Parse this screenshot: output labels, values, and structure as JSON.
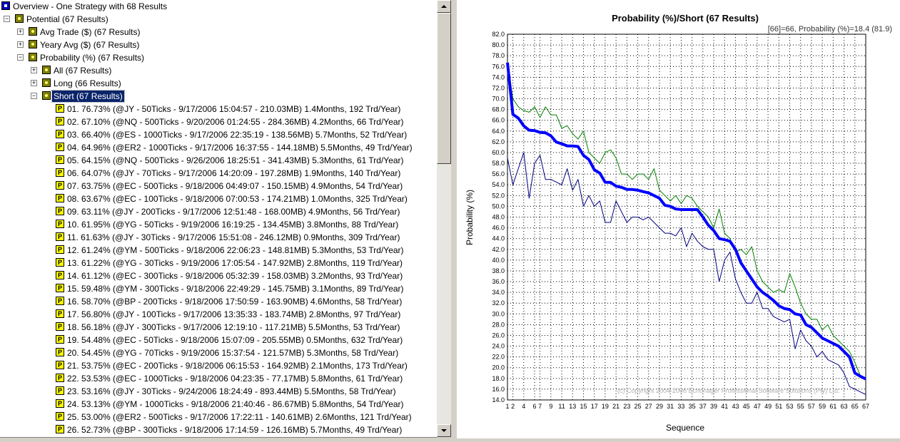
{
  "tree": {
    "items": [
      {
        "label": "Overview - One Strategy with 68 Results",
        "level": 0,
        "icon": "root"
      },
      {
        "label": "Potential (67 Results)",
        "level": 1,
        "icon": "node",
        "expanded": true
      },
      {
        "label": "Avg Trade ($) (67 Results)",
        "level": 2,
        "icon": "node",
        "expanded": false
      },
      {
        "label": "Yeary Avg ($) (67 Results)",
        "level": 2,
        "icon": "node",
        "expanded": false
      },
      {
        "label": "Probability (%) (67 Results)",
        "level": 2,
        "icon": "node",
        "expanded": true
      },
      {
        "label": "All (67 Results)",
        "level": 3,
        "icon": "node",
        "expanded": false
      },
      {
        "label": "Long (66 Results)",
        "level": 3,
        "icon": "node",
        "expanded": false
      },
      {
        "label": "Short (67 Results)",
        "level": 3,
        "icon": "node",
        "expanded": true,
        "selected": true
      },
      {
        "label": "01. 76.73% (@JY - 50Ticks - 9/17/2006 15:04:57 - 210.03MB) 1.4Months, 192 Trd/Year)",
        "level": 4,
        "icon": "res",
        "icon_text": "P"
      },
      {
        "label": "02. 67.10% (@NQ - 500Ticks - 9/20/2006 01:24:55 - 284.36MB) 4.2Months, 66 Trd/Year)",
        "level": 4,
        "icon": "res",
        "icon_text": "P"
      },
      {
        "label": "03. 66.40% (@ES - 1000Ticks - 9/17/2006 22:35:19 - 138.56MB) 5.7Months, 52 Trd/Year)",
        "level": 4,
        "icon": "res",
        "icon_text": "P"
      },
      {
        "label": "04. 64.96% (@ER2 - 1000Ticks - 9/17/2006 16:37:55 - 144.18MB) 5.5Months, 49 Trd/Year)",
        "level": 4,
        "icon": "res",
        "icon_text": "P"
      },
      {
        "label": "05. 64.15% (@NQ - 500Ticks - 9/26/2006 18:25:51 - 341.43MB) 5.3Months, 61 Trd/Year)",
        "level": 4,
        "icon": "res",
        "icon_text": "P"
      },
      {
        "label": "06. 64.07% (@JY - 70Ticks - 9/17/2006 14:20:09 - 197.28MB) 1.9Months, 140 Trd/Year)",
        "level": 4,
        "icon": "res",
        "icon_text": "P"
      },
      {
        "label": "07. 63.75% (@EC - 500Ticks - 9/18/2006 04:49:07 - 150.15MB) 4.9Months, 54 Trd/Year)",
        "level": 4,
        "icon": "res",
        "icon_text": "P"
      },
      {
        "label": "08. 63.67% (@EC - 100Ticks - 9/18/2006 07:00:53 - 174.21MB) 1.0Months, 325 Trd/Year)",
        "level": 4,
        "icon": "res",
        "icon_text": "P"
      },
      {
        "label": "09. 63.11% (@JY - 200Ticks - 9/17/2006 12:51:48 - 168.00MB) 4.9Months, 56 Trd/Year)",
        "level": 4,
        "icon": "res",
        "icon_text": "P"
      },
      {
        "label": "10. 61.95% (@YG - 50Ticks - 9/19/2006 16:19:25 - 134.45MB) 3.8Months, 88 Trd/Year)",
        "level": 4,
        "icon": "res",
        "icon_text": "P"
      },
      {
        "label": "11. 61.63% (@JY - 30Ticks - 9/17/2006 15:51:08 - 246.12MB) 0.9Months, 309 Trd/Year)",
        "level": 4,
        "icon": "res",
        "icon_text": "P"
      },
      {
        "label": "12. 61.24% (@YM - 500Ticks - 9/18/2006 22:06:23 - 148.81MB) 5.3Months, 53 Trd/Year)",
        "level": 4,
        "icon": "res",
        "icon_text": "P"
      },
      {
        "label": "13. 61.22% (@YG - 30Ticks - 9/19/2006 17:05:54 - 147.92MB) 2.8Months, 119 Trd/Year)",
        "level": 4,
        "icon": "res",
        "icon_text": "P"
      },
      {
        "label": "14. 61.12% (@EC - 300Ticks - 9/18/2006 05:32:39 - 158.03MB) 3.2Months, 93 Trd/Year)",
        "level": 4,
        "icon": "res",
        "icon_text": "P"
      },
      {
        "label": "15. 59.48% (@YM - 300Ticks - 9/18/2006 22:49:29 - 145.75MB) 3.1Months, 89 Trd/Year)",
        "level": 4,
        "icon": "res",
        "icon_text": "P"
      },
      {
        "label": "16. 58.70% (@BP - 200Ticks - 9/18/2006 17:50:59 - 163.90MB) 4.6Months, 58 Trd/Year)",
        "level": 4,
        "icon": "res",
        "icon_text": "P"
      },
      {
        "label": "17. 56.80% (@JY - 100Ticks - 9/17/2006 13:35:33 - 183.74MB) 2.8Months, 97 Trd/Year)",
        "level": 4,
        "icon": "res",
        "icon_text": "P"
      },
      {
        "label": "18. 56.18% (@JY - 300Ticks - 9/17/2006 12:19:10 - 117.21MB) 5.5Months, 53 Trd/Year)",
        "level": 4,
        "icon": "res",
        "icon_text": "P"
      },
      {
        "label": "19. 54.48% (@EC - 50Ticks - 9/18/2006 15:07:09 - 205.55MB) 0.5Months, 632 Trd/Year)",
        "level": 4,
        "icon": "res",
        "icon_text": "P"
      },
      {
        "label": "20. 54.45% (@YG - 70Ticks - 9/19/2006 15:37:54 - 121.57MB) 5.3Months, 58 Trd/Year)",
        "level": 4,
        "icon": "res",
        "icon_text": "P"
      },
      {
        "label": "21. 53.75% (@EC - 200Ticks - 9/18/2006 06:15:53 - 164.92MB) 2.1Months, 173 Trd/Year)",
        "level": 4,
        "icon": "res",
        "icon_text": "P"
      },
      {
        "label": "22. 53.53% (@EC - 1000Ticks - 9/18/2006 04:23:35 - 77.17MB) 5.8Months, 61 Trd/Year)",
        "level": 4,
        "icon": "res",
        "icon_text": "P"
      },
      {
        "label": "23. 53.16% (@JY - 30Ticks - 9/24/2006 18:24:49 - 893.44MB) 5.5Months, 58 Trd/Year)",
        "level": 4,
        "icon": "res",
        "icon_text": "P"
      },
      {
        "label": "24. 53.13% (@YM - 1000Ticks - 9/18/2006 21:40:46 - 86.67MB) 5.8Months, 54 Trd/Year)",
        "level": 4,
        "icon": "res",
        "icon_text": "P"
      },
      {
        "label": "25. 53.00% (@ER2 - 500Ticks - 9/17/2006 17:22:11 - 140.61MB) 2.6Months, 121 Trd/Year)",
        "level": 4,
        "icon": "res",
        "icon_text": "P"
      },
      {
        "label": "26. 52.73% (@BP - 300Ticks - 9/18/2006 17:14:59 - 126.16MB) 5.7Months, 49 Trd/Year)",
        "level": 4,
        "icon": "res",
        "icon_text": "P"
      }
    ]
  },
  "chart_data": {
    "type": "line",
    "title": "Probability (%)/Short (67 Results)",
    "annotation": "[66]=66,  Probability (%)=18.4 (81.9)",
    "copyright": "(c) Copyright 2004-2006 Echonager Professional Software Solutions (Pty) Ltd.",
    "xlabel": "Sequence",
    "ylabel": "Probability (%)",
    "x": [
      1,
      2,
      3,
      4,
      5,
      6,
      7,
      8,
      9,
      10,
      11,
      12,
      13,
      14,
      15,
      16,
      17,
      18,
      19,
      20,
      21,
      22,
      23,
      24,
      25,
      26,
      27,
      28,
      29,
      30,
      31,
      32,
      33,
      34,
      35,
      36,
      37,
      38,
      39,
      40,
      41,
      42,
      43,
      44,
      45,
      46,
      47,
      48,
      49,
      50,
      51,
      52,
      53,
      54,
      55,
      56,
      57,
      58,
      59,
      60,
      61,
      62,
      63,
      64,
      65,
      66,
      67
    ],
    "xlim": [
      1,
      67
    ],
    "xticks": [
      1,
      2,
      4,
      6,
      7,
      9,
      11,
      13,
      15,
      17,
      19,
      21,
      23,
      25,
      27,
      29,
      31,
      33,
      35,
      37,
      39,
      41,
      43,
      45,
      47,
      49,
      51,
      53,
      55,
      57,
      59,
      61,
      63,
      65,
      67
    ],
    "ylim": [
      14,
      82
    ],
    "yticks": [
      {
        "value": 14,
        "label": "14.0"
      },
      {
        "value": 16,
        "label": "16.0"
      },
      {
        "value": 18,
        "label": "18.0"
      },
      {
        "value": 20,
        "label": "20.0"
      },
      {
        "value": 22,
        "label": "22.0"
      },
      {
        "value": 24,
        "label": "24.0"
      },
      {
        "value": 26,
        "label": "26.0"
      },
      {
        "value": 28,
        "label": "28.0"
      },
      {
        "value": 30,
        "label": "30.0"
      },
      {
        "value": 32,
        "label": "32.0"
      },
      {
        "value": 34,
        "label": "34.0"
      },
      {
        "value": 36,
        "label": "36.0"
      },
      {
        "value": 38,
        "label": "38.0"
      },
      {
        "value": 40,
        "label": "40.0"
      },
      {
        "value": 42,
        "label": "42.0"
      },
      {
        "value": 44,
        "label": "44.0"
      },
      {
        "value": 46,
        "label": "46.0"
      },
      {
        "value": 48,
        "label": "48.0"
      },
      {
        "value": 50,
        "label": "50.0"
      },
      {
        "value": 52,
        "label": "52.0"
      },
      {
        "value": 54,
        "label": "54.0"
      },
      {
        "value": 56,
        "label": "56.0"
      },
      {
        "value": 58,
        "label": "58.0"
      },
      {
        "value": 60,
        "label": "60.0"
      },
      {
        "value": 62,
        "label": "62.0"
      },
      {
        "value": 64,
        "label": "64.0"
      },
      {
        "value": 66,
        "label": "66.0"
      },
      {
        "value": 68,
        "label": "68.0"
      },
      {
        "value": 70,
        "label": "70.0"
      },
      {
        "value": 72,
        "label": "72.0"
      },
      {
        "value": 74,
        "label": "74.0"
      },
      {
        "value": 76,
        "label": "76.0"
      },
      {
        "value": 78,
        "label": "78.0"
      },
      {
        "value": 80,
        "label": "80.0"
      },
      {
        "value": 82,
        "label": "82.0"
      }
    ],
    "grid": true,
    "series": [
      {
        "color": "#008000",
        "width": 1,
        "values": [
          77,
          70,
          68.5,
          67.8,
          67.5,
          68.5,
          66.5,
          68.5,
          67,
          67,
          64.5,
          65,
          63.5,
          62.5,
          64,
          60,
          59,
          58,
          60,
          60.5,
          59,
          56,
          56,
          55,
          56,
          56,
          55,
          57,
          53,
          52,
          51,
          52,
          50.5,
          52,
          51.5,
          50,
          49,
          48,
          46,
          49.5,
          45,
          44,
          41.5,
          42,
          41,
          42.5,
          38,
          36,
          35,
          34,
          34.5,
          34,
          37.5,
          35,
          32,
          30,
          29,
          29,
          27,
          28,
          26,
          25,
          24,
          23,
          21,
          18.5,
          18
        ]
      },
      {
        "color": "#000080",
        "width": 1,
        "values": [
          59,
          54,
          57,
          60,
          51.5,
          58,
          59.5,
          55,
          55,
          54.5,
          54,
          57,
          53,
          55,
          50,
          52,
          50,
          51,
          47,
          47,
          51,
          49,
          47,
          48,
          48,
          47.5,
          48,
          47,
          46,
          45,
          45,
          44.5,
          46,
          42.5,
          45,
          43.5,
          42.5,
          42,
          42,
          36,
          40,
          41.5,
          36.5,
          34,
          32,
          32,
          34,
          31,
          31,
          29.5,
          29,
          28.5,
          29,
          23.5,
          27,
          25,
          24,
          22,
          23,
          21.5,
          21,
          20.5,
          19,
          16.5,
          16,
          15.5,
          15
        ]
      },
      {
        "color": "#0000ff",
        "width": 4,
        "values": [
          76.73,
          67.1,
          66.4,
          64.96,
          64.15,
          64.07,
          63.75,
          63.67,
          63.11,
          61.95,
          61.63,
          61.24,
          61.22,
          61.12,
          59.48,
          58.7,
          56.8,
          56.18,
          54.48,
          54.45,
          53.75,
          53.53,
          53.16,
          53.13,
          53.0,
          52.73,
          52.5,
          52.0,
          51.5,
          50.2,
          50.0,
          49.5,
          49.4,
          49.4,
          49.4,
          49.4,
          48,
          46.5,
          45.5,
          44,
          43.8,
          43.5,
          42,
          39.5,
          38,
          36.5,
          35,
          34,
          33.3,
          32.5,
          31.5,
          31,
          30.8,
          30,
          29.8,
          28,
          27.5,
          26.5,
          25.5,
          25,
          24.5,
          24,
          23,
          22,
          19,
          18.4,
          17.9
        ]
      }
    ]
  }
}
